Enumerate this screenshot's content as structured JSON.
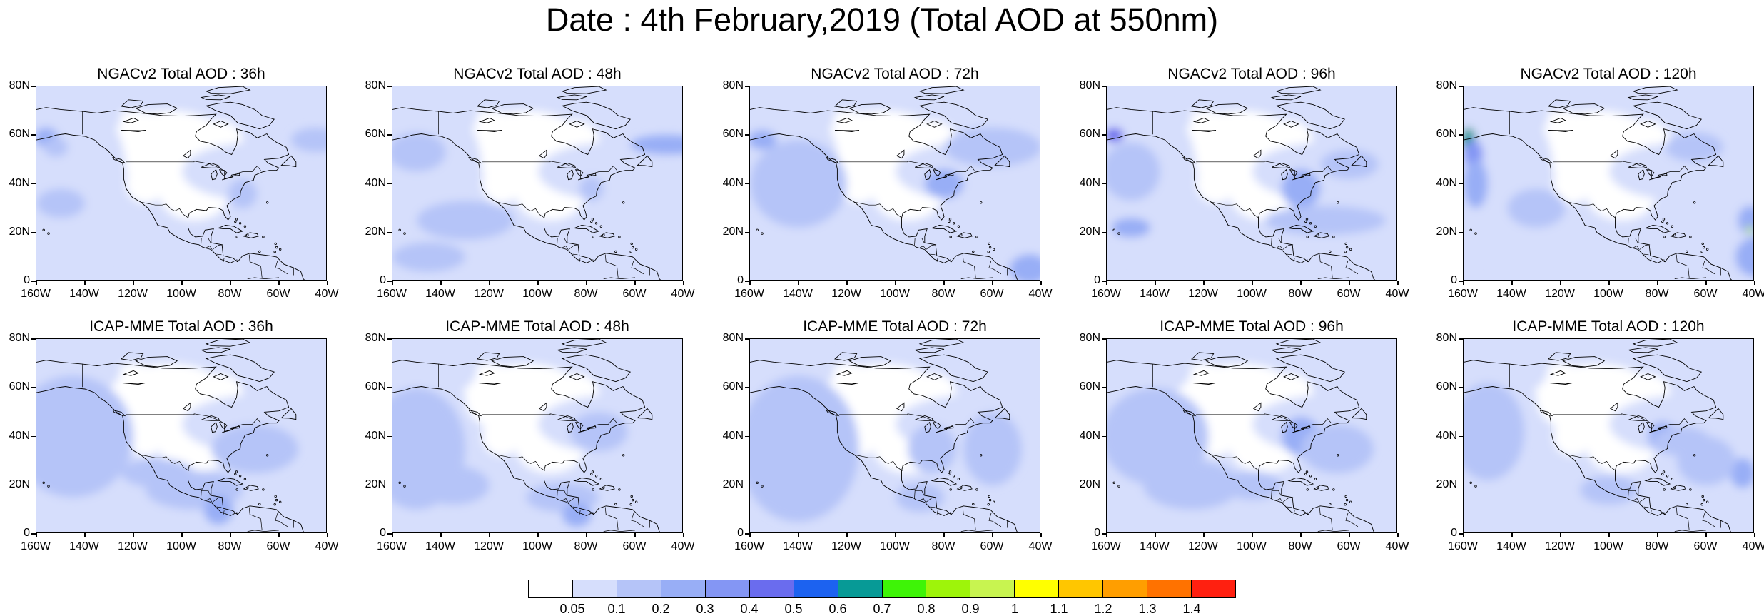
{
  "title": "Date : 4th February,2019 (Total AOD at 550nm)",
  "panels": [
    {
      "title": "NGACv2 Total AOD : 36h",
      "model": "NGACv2",
      "lead": "36h",
      "hotspots": [
        "pacific-nw-0.3",
        "north-atlantic-0.2"
      ]
    },
    {
      "title": "NGACv2 Total AOD : 48h",
      "model": "NGACv2",
      "lead": "48h",
      "hotspots": [
        "north-atlantic-0.3"
      ]
    },
    {
      "title": "NGACv2 Total AOD : 72h",
      "model": "NGACv2",
      "lead": "72h",
      "hotspots": [
        "pacific-nw-0.3",
        "us-east-coast-0.3"
      ]
    },
    {
      "title": "NGACv2 Total AOD : 96h",
      "model": "NGACv2",
      "lead": "96h",
      "hotspots": [
        "pacific-nw-0.4",
        "us-east-coast-0.3"
      ]
    },
    {
      "title": "NGACv2 Total AOD : 120h",
      "model": "NGACv2",
      "lead": "120h",
      "hotspots": [
        "pacific-nw-0.7",
        "tropical-atlantic-0.9"
      ]
    },
    {
      "title": "ICAP-MME Total AOD : 36h",
      "model": "ICAP-MME",
      "lead": "36h",
      "hotspots": [
        "mexico-caribbean-0.3"
      ]
    },
    {
      "title": "ICAP-MME Total AOD : 48h",
      "model": "ICAP-MME",
      "lead": "48h",
      "hotspots": [
        "mexico-caribbean-0.3"
      ]
    },
    {
      "title": "ICAP-MME Total AOD : 72h",
      "model": "ICAP-MME",
      "lead": "72h",
      "hotspots": [
        "us-east-0.2"
      ]
    },
    {
      "title": "ICAP-MME Total AOD : 96h",
      "model": "ICAP-MME",
      "lead": "96h",
      "hotspots": [
        "us-east-coast-0.3"
      ]
    },
    {
      "title": "ICAP-MME Total AOD : 120h",
      "model": "ICAP-MME",
      "lead": "120h",
      "hotspots": [
        "us-east-coast-0.3"
      ]
    }
  ],
  "lat_ticks": [
    "80N",
    "60N",
    "40N",
    "20N",
    "0"
  ],
  "lon_ticks": [
    "160W",
    "140W",
    "120W",
    "100W",
    "80W",
    "60W",
    "40W"
  ],
  "colorbar": {
    "colors": [
      "#ffffff",
      "#d6defc",
      "#b5c4f8",
      "#98aef6",
      "#8496f4",
      "#6a6cee",
      "#1c62f0",
      "#079a96",
      "#3ef407",
      "#9ef40a",
      "#c8f450",
      "#ffff00",
      "#ffc600",
      "#ff9e00",
      "#ff7200",
      "#ff2010"
    ],
    "labels": [
      "0.05",
      "0.1",
      "0.2",
      "0.3",
      "0.4",
      "0.5",
      "0.6",
      "0.7",
      "0.8",
      "0.9",
      "1",
      "1.1",
      "1.2",
      "1.3",
      "1.4"
    ]
  }
}
